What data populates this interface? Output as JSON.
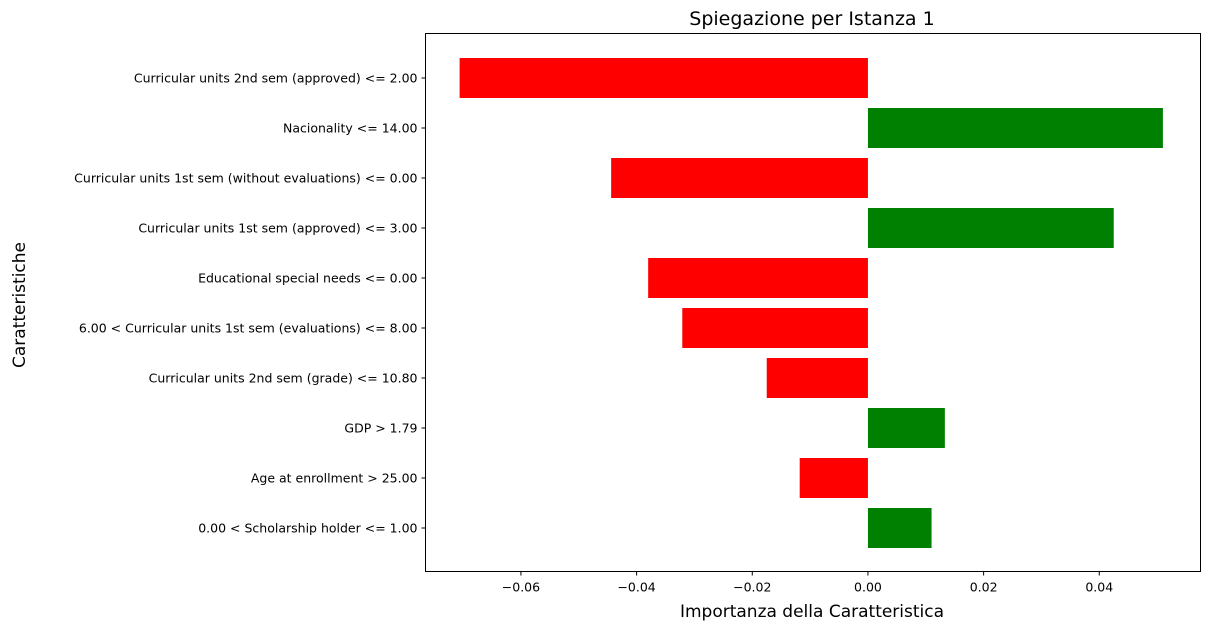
{
  "chart_data": {
    "type": "bar",
    "orientation": "horizontal",
    "title": "Spiegazione per Istanza 1",
    "xlabel": "Importanza della Caratteristica",
    "ylabel": "Caratteristiche",
    "xlim": [
      -0.0765,
      0.0575
    ],
    "xticks": [
      -0.06,
      -0.04,
      -0.02,
      0.0,
      0.02,
      0.04
    ],
    "xtick_labels": [
      "−0.06",
      "−0.04",
      "−0.02",
      "0.00",
      "0.02",
      "0.04"
    ],
    "grid": false,
    "positive_color": "#008000",
    "negative_color": "#ff0000",
    "categories": [
      "Curricular units 2nd sem (approved) <= 2.00",
      "Nacionality <= 14.00",
      "Curricular units 1st sem (without evaluations) <= 0.00",
      "Curricular units 1st sem (approved) <= 3.00",
      "Educational special needs <= 0.00",
      "6.00 < Curricular units 1st sem (evaluations) <= 8.00",
      "Curricular units 2nd sem (grade) <= 10.80",
      "GDP > 1.79",
      "Age at enrollment > 25.00",
      "0.00 < Scholarship holder <= 1.00"
    ],
    "values": [
      -0.0706,
      0.051,
      -0.0444,
      0.0425,
      -0.038,
      -0.0321,
      -0.0175,
      0.0133,
      -0.0118,
      0.011
    ]
  }
}
